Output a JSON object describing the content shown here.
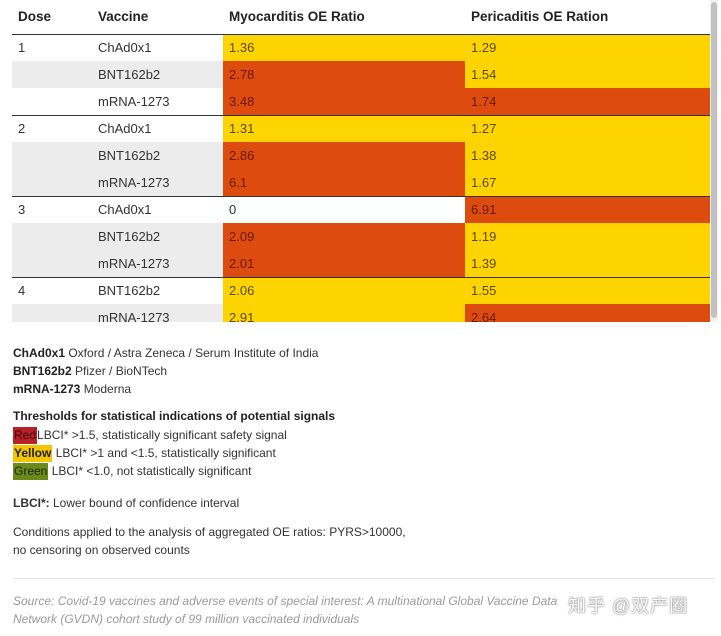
{
  "table": {
    "headers": [
      "Dose",
      "Vaccine",
      "Myocarditis OE Ratio",
      "Pericaditis OE Ration"
    ],
    "rows": [
      {
        "dose": "1",
        "vaccine": "ChAd0x1",
        "myo": "1.36",
        "peri": "1.29",
        "shade": false,
        "group_start": false,
        "myo_color": "yellow",
        "peri_color": "yellow"
      },
      {
        "dose": "",
        "vaccine": "BNT162b2",
        "myo": "2.78",
        "peri": "1.54",
        "shade": true,
        "group_start": false,
        "myo_color": "red",
        "peri_color": "yellow"
      },
      {
        "dose": "",
        "vaccine": "mRNA-1273",
        "myo": "3.48",
        "peri": "1.74",
        "shade": false,
        "group_start": false,
        "myo_color": "red",
        "peri_color": "red"
      },
      {
        "dose": "2",
        "vaccine": "ChAd0x1",
        "myo": "1.31",
        "peri": "1.27",
        "shade": false,
        "group_start": true,
        "myo_color": "yellow",
        "peri_color": "yellow"
      },
      {
        "dose": "",
        "vaccine": "BNT162b2",
        "myo": "2.86",
        "peri": "1.38",
        "shade": true,
        "group_start": false,
        "myo_color": "red",
        "peri_color": "yellow"
      },
      {
        "dose": "",
        "vaccine": "mRNA-1273",
        "myo": "6.1",
        "peri": "1.67",
        "shade": true,
        "group_start": false,
        "myo_color": "red",
        "peri_color": "yellow"
      },
      {
        "dose": "3",
        "vaccine": "ChAd0x1",
        "myo": "0",
        "peri": "6.91",
        "shade": false,
        "group_start": true,
        "myo_color": "white",
        "peri_color": "red"
      },
      {
        "dose": "",
        "vaccine": "BNT162b2",
        "myo": "2.09",
        "peri": "1.19",
        "shade": true,
        "group_start": false,
        "myo_color": "red",
        "peri_color": "yellow"
      },
      {
        "dose": "",
        "vaccine": "mRNA-1273",
        "myo": "2.01",
        "peri": "1.39",
        "shade": true,
        "group_start": false,
        "myo_color": "red",
        "peri_color": "yellow"
      },
      {
        "dose": "4",
        "vaccine": "BNT162b2",
        "myo": "2.06",
        "peri": "1.55",
        "shade": false,
        "group_start": true,
        "myo_color": "yellow",
        "peri_color": "yellow"
      },
      {
        "dose": "",
        "vaccine": "mRNA-1273",
        "myo": "2.91",
        "peri": "2.64",
        "shade": true,
        "group_start": false,
        "myo_color": "yellow",
        "peri_color": "red"
      }
    ]
  },
  "legend": {
    "items": [
      {
        "code": "ChAd0x1",
        "desc": " Oxford / Astra Zeneca / Serum Institute of India"
      },
      {
        "code": "BNT162b2",
        "desc": " Pfizer / BioNTech"
      },
      {
        "code": "mRNA-1273",
        "desc": " Moderna"
      }
    ]
  },
  "thresholds": {
    "title": "Thresholds for statistical indications of potential signals",
    "red_label": "Red",
    "red_text": "LBCI* >1.5, statistically significant safety signal",
    "yellow_label": "Yellow",
    "yellow_text": " LBCI* >1 and <1.5, statistically significant",
    "green_label": "Green",
    "green_text": " LBCI* <1.0, not statistically significant"
  },
  "lbci": {
    "term": "LBCI*:",
    "def": " Lower bound of confidence interval"
  },
  "conditions": {
    "line1": "Conditions applied to the analysis of aggregated OE ratios: PYRS>10000,",
    "line2": "no censoring on observed counts"
  },
  "source": "Source: Covid-19 vaccines and adverse events of special interest: A multinational Global Vaccine Data Network (GVDN) cohort study of 99 million vaccinated individuals",
  "watermark": "知乎 @双产圈",
  "colors": {
    "red": "#dd4b0f",
    "yellow": "#fdd400",
    "shade": "#ececec"
  }
}
